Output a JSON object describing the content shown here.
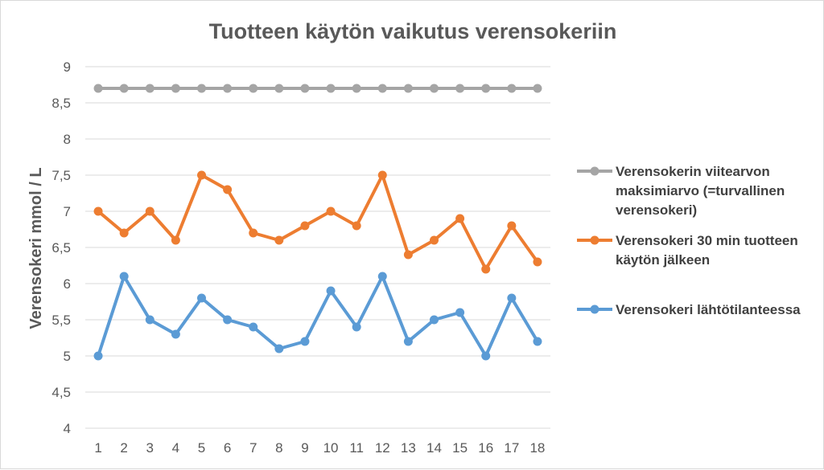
{
  "chart_data": {
    "type": "line",
    "title": "Tuotteen käytön vaikutus verensokeriin",
    "xlabel": "",
    "ylabel": "Verensokeri mmol / L",
    "categories": [
      "1",
      "2",
      "3",
      "4",
      "5",
      "6",
      "7",
      "8",
      "9",
      "10",
      "11",
      "12",
      "13",
      "14",
      "15",
      "16",
      "17",
      "18"
    ],
    "ylim": [
      4,
      9
    ],
    "y_ticks": [
      "4",
      "4,5",
      "5",
      "5,5",
      "6",
      "6,5",
      "7",
      "7,5",
      "8",
      "8,5",
      "9"
    ],
    "grid": true,
    "legend_position": "right",
    "series": [
      {
        "name": "Verensokerin viitearvon maksimiarvo (=turvallinen verensokeri)",
        "legend_lines": [
          "Verensokerin viitearvon",
          "maksimiarvo (=turvallinen",
          "verensokeri)"
        ],
        "color": "#a5a5a5",
        "values": [
          8.7,
          8.7,
          8.7,
          8.7,
          8.7,
          8.7,
          8.7,
          8.7,
          8.7,
          8.7,
          8.7,
          8.7,
          8.7,
          8.7,
          8.7,
          8.7,
          8.7,
          8.7
        ]
      },
      {
        "name": "Verensokeri 30 min tuotteen käytön jälkeen",
        "legend_lines": [
          "Verensokeri 30 min tuotteen",
          "käytön jälkeen"
        ],
        "color": "#ed7d31",
        "values": [
          7.0,
          6.7,
          7.0,
          6.6,
          7.5,
          7.3,
          6.7,
          6.6,
          6.8,
          7.0,
          6.8,
          7.5,
          6.4,
          6.6,
          6.9,
          6.2,
          6.8,
          6.3
        ]
      },
      {
        "name": "Verensokeri lähtötilanteessa",
        "legend_lines": [
          "Verensokeri lähtötilanteessa"
        ],
        "color": "#5b9bd5",
        "values": [
          5.0,
          6.1,
          5.5,
          5.3,
          5.8,
          5.5,
          5.4,
          5.1,
          5.2,
          5.9,
          5.4,
          6.1,
          5.2,
          5.5,
          5.6,
          5.0,
          5.8,
          5.2
        ]
      }
    ]
  }
}
